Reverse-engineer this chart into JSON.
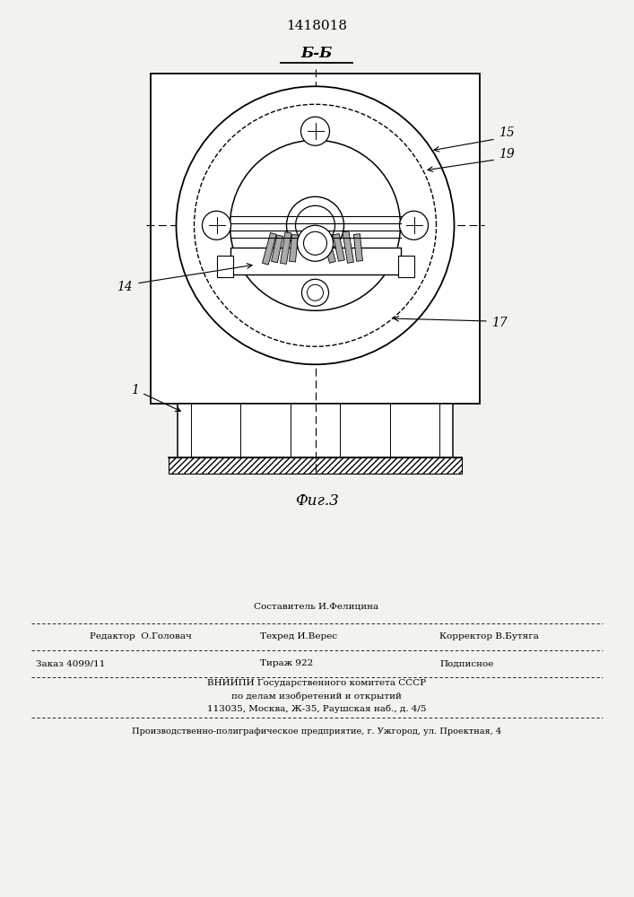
{
  "bg_color": "#f2f2ee",
  "patent_number": "1418018",
  "section_label": "Б-Б",
  "fig_label": "Фиг.3",
  "footer_row1_center": "Составитель И.Фелицина",
  "footer_row2_left": "Редактор  О.Головач",
  "footer_row2_center": "Техред И.Верес",
  "footer_row2_right": "Корректор В.Бутяга",
  "footer_row3_left": "Заказ 4099/11",
  "footer_row3_center": "Тираж 922",
  "footer_row3_right": "Подписное",
  "footer_vnipi1": "ВНИИПИ Государственного комитета СССР",
  "footer_vnipi2": "по делам изобретений и открытий",
  "footer_vnipi3": "113035, Москва, Ж-35, Раушская наб., д. 4/5",
  "footer_last": "Производственно-полиграфическое предприятие, г. Ужгород, ул. Проектная, 4"
}
